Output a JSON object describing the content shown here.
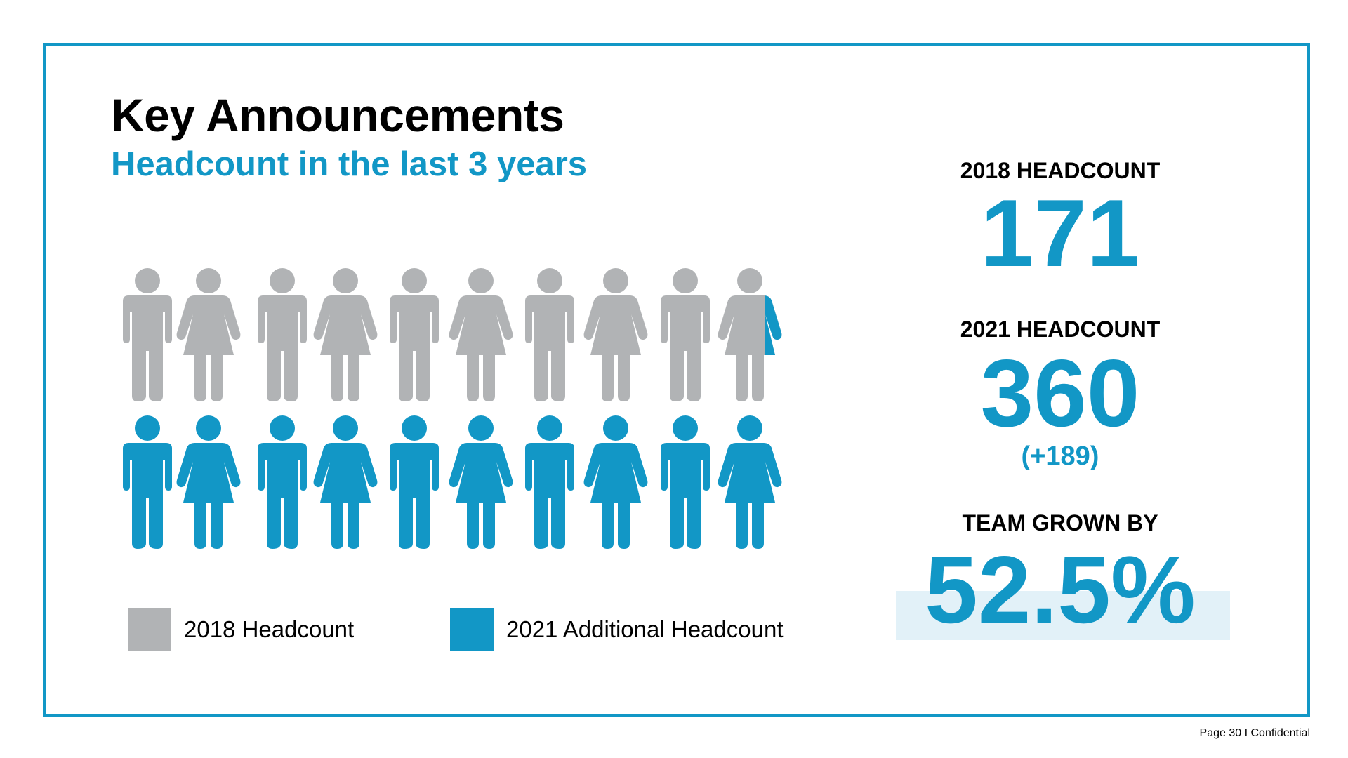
{
  "header": {
    "title": "Key Announcements",
    "subtitle": "Headcount in the last 3 years"
  },
  "colors": {
    "accent": "#1297c6",
    "grey_figure": "#b1b3b5",
    "highlight_bg": "#e2f1f8",
    "frame": "#1297c6"
  },
  "pictogram": {
    "rows": [
      {
        "series": "2018",
        "count": 10,
        "pattern": [
          "male",
          "female",
          "male",
          "female",
          "male",
          "female",
          "male",
          "female",
          "male",
          "female"
        ],
        "last_blue_fraction": 0.26
      },
      {
        "series": "2021",
        "count": 10,
        "pattern": [
          "male",
          "female",
          "male",
          "female",
          "male",
          "female",
          "male",
          "female",
          "male",
          "female"
        ]
      }
    ]
  },
  "legend": {
    "items": [
      {
        "label": "2018 Headcount",
        "color": "#b1b3b5"
      },
      {
        "label": "2021 Additional Headcount",
        "color": "#1297c6"
      }
    ]
  },
  "stats": {
    "headcount_2018_label": "2018 HEADCOUNT",
    "headcount_2018_value": "171",
    "headcount_2021_label": "2021 HEADCOUNT",
    "headcount_2021_value": "360",
    "headcount_2021_delta": "(+189)",
    "growth_label": "TEAM GROWN BY",
    "growth_value": "52.5%"
  },
  "footer": {
    "text": "Page 30 I Confidential"
  }
}
